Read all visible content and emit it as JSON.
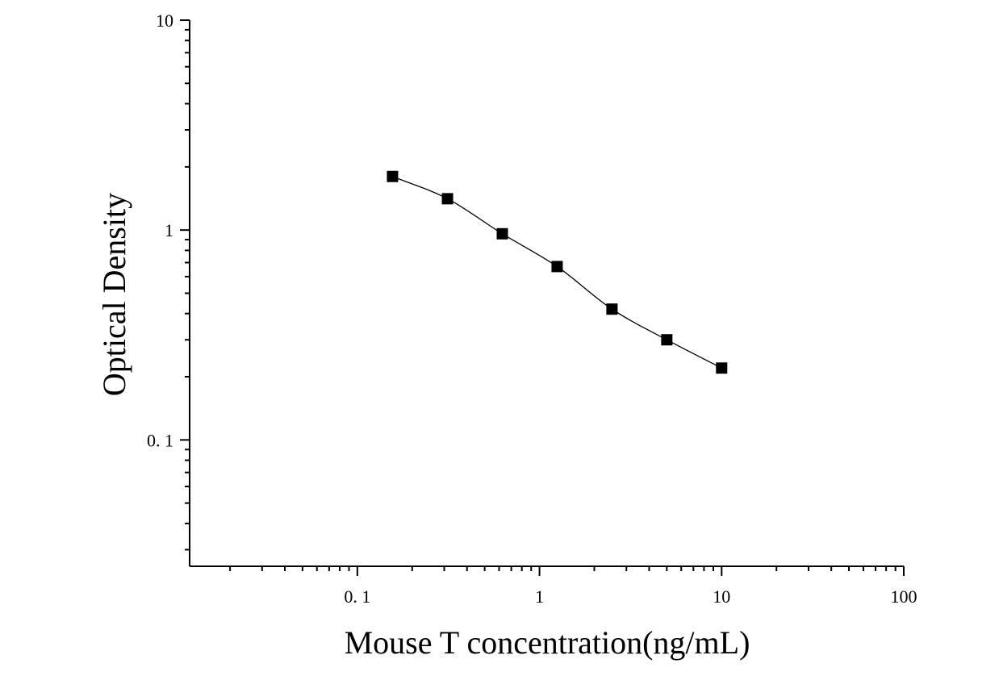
{
  "chart_data": {
    "type": "scatter",
    "title": "",
    "xlabel": "Mouse T concentration(ng/mL)",
    "ylabel": "Optical Density",
    "x_scale": "log",
    "y_scale": "log",
    "xlim": [
      0.012,
      100
    ],
    "ylim": [
      0.025,
      10
    ],
    "x_tick_labels": [
      {
        "value": 0.1,
        "label": "0. 1"
      },
      {
        "value": 1,
        "label": "1"
      },
      {
        "value": 10,
        "label": "10"
      },
      {
        "value": 100,
        "label": "100"
      }
    ],
    "y_tick_labels": [
      {
        "value": 0.1,
        "label": "0. 1"
      },
      {
        "value": 1,
        "label": "1"
      },
      {
        "value": 10,
        "label": "10"
      }
    ],
    "series": [
      {
        "marker": "square",
        "x": [
          0.156,
          0.3125,
          0.625,
          1.25,
          2.5,
          5,
          10
        ],
        "y": [
          1.8,
          1.41,
          0.96,
          0.67,
          0.42,
          0.3,
          0.22
        ]
      }
    ],
    "fit_curve": true,
    "grid": false,
    "legend": "none",
    "colors": {
      "marker": "#000000",
      "line": "#000000",
      "axis": "#000000"
    }
  }
}
